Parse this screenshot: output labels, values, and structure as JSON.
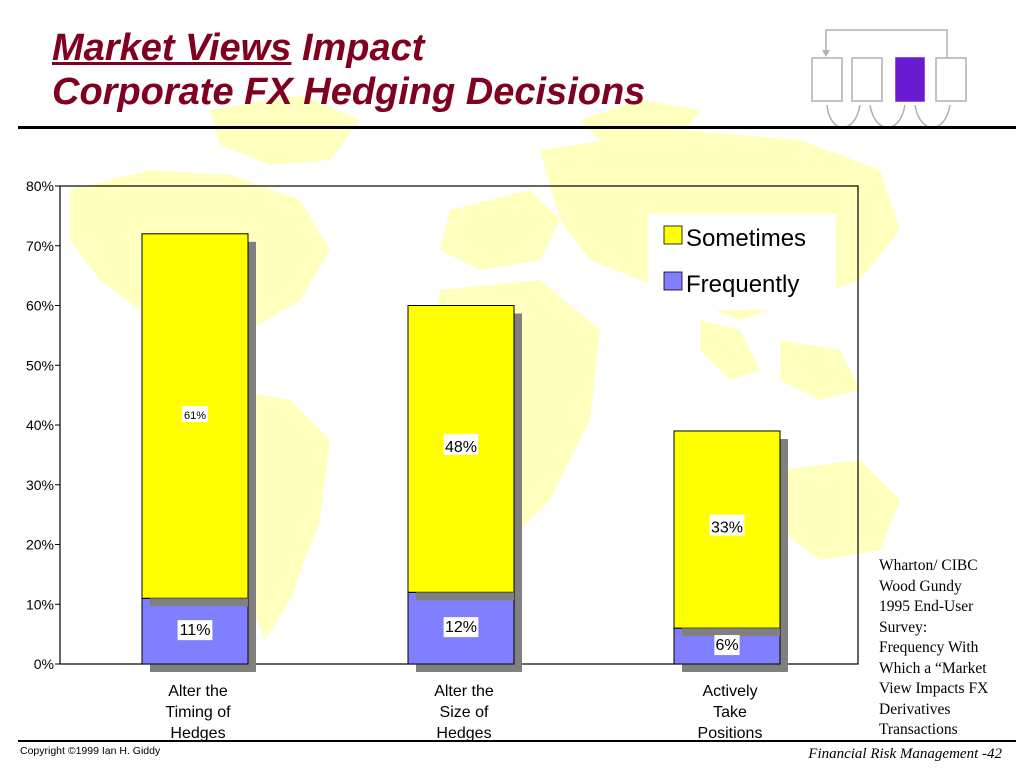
{
  "slide": {
    "title_line1_underlined": "Market Views",
    "title_line1_rest": "Impact",
    "title_line2": "Corporate FX Hedging Decisions"
  },
  "side_note": {
    "lines": [
      "Wharton/ CIBC",
      "Wood Gundy",
      "1995 End-User",
      "Survey:",
      "Frequency With",
      "Which a “Market",
      "View Impacts FX",
      "Derivatives",
      "Transactions"
    ]
  },
  "footer": {
    "copyright": "Copyright ©1999 Ian H. Giddy",
    "course": "Financial Risk Management -42"
  },
  "colors": {
    "title": "#800020",
    "sometimes": "#ffff00",
    "frequently": "#8080ff",
    "map": "#ffffbe",
    "nav_active": "#6a1bd1"
  },
  "nav": {
    "active_index": 2
  },
  "chart_data": {
    "type": "bar",
    "stacked": true,
    "categories": [
      [
        "Alter the",
        "Timing of",
        "Hedges"
      ],
      [
        "Alter the",
        "Size of",
        "Hedges"
      ],
      [
        "Actively",
        "Take",
        "Positions"
      ]
    ],
    "series": [
      {
        "name": "Frequently",
        "values": [
          11,
          12,
          6
        ],
        "labels": [
          "11%",
          "12%",
          "6%"
        ]
      },
      {
        "name": "Sometimes",
        "values": [
          61,
          48,
          33
        ],
        "labels": [
          "61%",
          "48%",
          "33%"
        ]
      }
    ],
    "ylim": [
      0,
      80
    ],
    "yticks": [
      "0%",
      "10%",
      "20%",
      "30%",
      "40%",
      "50%",
      "60%",
      "70%",
      "80%"
    ],
    "legend": [
      "Sometimes",
      "Frequently"
    ],
    "legend_position": "top-right",
    "grid": false
  }
}
